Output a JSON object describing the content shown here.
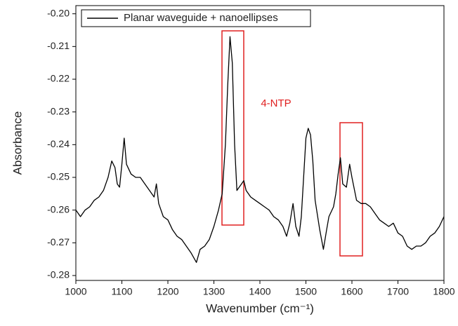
{
  "chart_data": {
    "type": "line",
    "xlabel": "Wavenumber (cm⁻¹)",
    "ylabel": "Absorbance",
    "annotation": "4-NTP",
    "xlim": [
      1000,
      1800
    ],
    "xticks": [
      1000,
      1100,
      1200,
      1300,
      1400,
      1500,
      1600,
      1700,
      1800
    ],
    "ylim": [
      -0.2815,
      -0.1975
    ],
    "yticks": [
      {
        "value": -0.2,
        "label": "-0.20"
      },
      -0.21,
      -0.22,
      -0.23,
      -0.24,
      -0.25,
      -0.26,
      -0.27,
      -0.28
    ],
    "legend_position": "upper left",
    "x": [
      1000,
      1010,
      1020,
      1030,
      1040,
      1050,
      1060,
      1070,
      1078,
      1085,
      1090,
      1095,
      1100,
      1105,
      1110,
      1120,
      1130,
      1140,
      1150,
      1160,
      1170,
      1175,
      1180,
      1190,
      1200,
      1210,
      1220,
      1230,
      1240,
      1250,
      1262,
      1270,
      1280,
      1290,
      1300,
      1310,
      1318,
      1325,
      1330,
      1335,
      1340,
      1345,
      1350,
      1355,
      1360,
      1365,
      1370,
      1380,
      1390,
      1400,
      1410,
      1420,
      1430,
      1440,
      1450,
      1458,
      1465,
      1472,
      1478,
      1485,
      1490,
      1495,
      1500,
      1505,
      1510,
      1515,
      1520,
      1530,
      1538,
      1545,
      1550,
      1560,
      1565,
      1570,
      1575,
      1580,
      1588,
      1595,
      1600,
      1610,
      1620,
      1630,
      1640,
      1650,
      1660,
      1670,
      1680,
      1690,
      1700,
      1710,
      1720,
      1730,
      1740,
      1750,
      1760,
      1770,
      1780,
      1790,
      1800
    ],
    "series": [
      {
        "name": "Planar waveguide + nanoellipses",
        "color": "#000000",
        "values": [
          -0.26,
          -0.262,
          -0.26,
          -0.259,
          -0.257,
          -0.256,
          -0.254,
          -0.25,
          -0.245,
          -0.247,
          -0.252,
          -0.253,
          -0.246,
          -0.238,
          -0.246,
          -0.249,
          -0.25,
          -0.25,
          -0.252,
          -0.254,
          -0.256,
          -0.252,
          -0.258,
          -0.262,
          -0.263,
          -0.266,
          -0.268,
          -0.269,
          -0.271,
          -0.273,
          -0.276,
          -0.272,
          -0.271,
          -0.269,
          -0.265,
          -0.26,
          -0.255,
          -0.24,
          -0.222,
          -0.207,
          -0.215,
          -0.24,
          -0.254,
          -0.253,
          -0.252,
          -0.251,
          -0.254,
          -0.256,
          -0.257,
          -0.258,
          -0.259,
          -0.26,
          -0.262,
          -0.263,
          -0.265,
          -0.268,
          -0.264,
          -0.258,
          -0.265,
          -0.268,
          -0.262,
          -0.25,
          -0.238,
          -0.235,
          -0.237,
          -0.245,
          -0.257,
          -0.266,
          -0.272,
          -0.266,
          -0.262,
          -0.259,
          -0.255,
          -0.249,
          -0.244,
          -0.252,
          -0.253,
          -0.246,
          -0.25,
          -0.257,
          -0.258,
          -0.258,
          -0.259,
          -0.261,
          -0.263,
          -0.264,
          -0.265,
          -0.264,
          -0.267,
          -0.268,
          -0.271,
          -0.272,
          -0.271,
          -0.271,
          -0.27,
          -0.268,
          -0.267,
          -0.265,
          -0.262
        ]
      }
    ]
  }
}
